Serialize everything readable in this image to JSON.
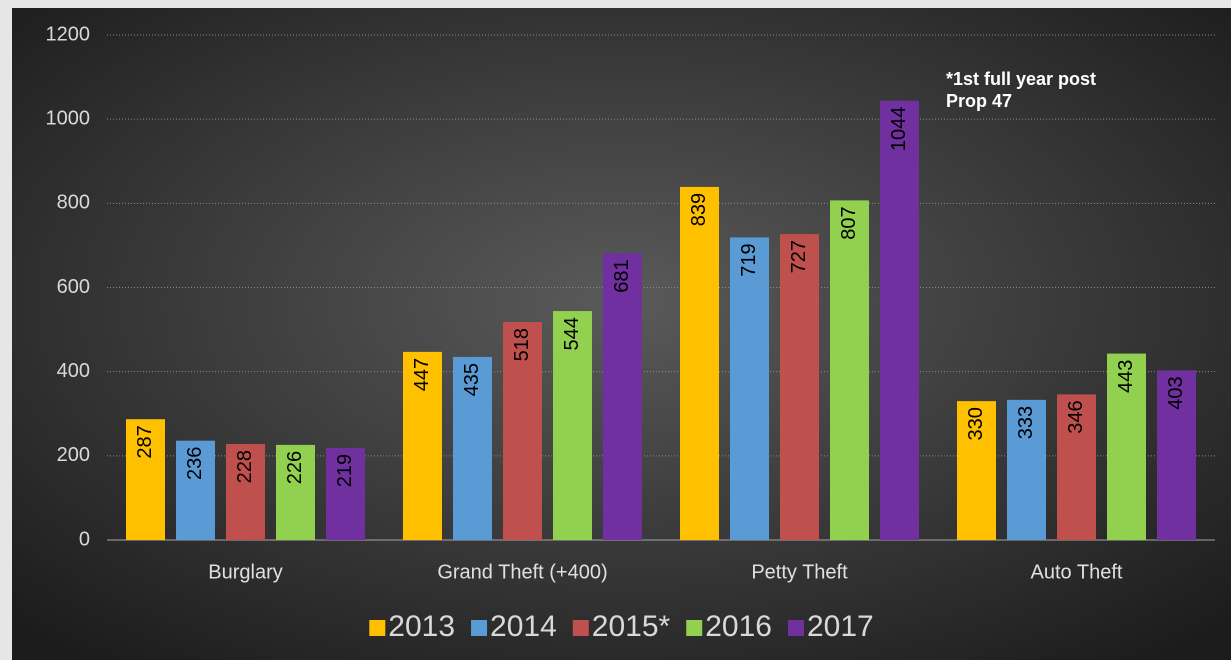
{
  "chart_data": {
    "type": "bar",
    "categories": [
      "Burglary",
      "Grand Theft (+400)",
      "Petty Theft",
      "Auto Theft"
    ],
    "series": [
      {
        "name": "2013",
        "color": "#ffc000",
        "values": [
          287,
          447,
          839,
          330
        ]
      },
      {
        "name": "2014",
        "color": "#5b9bd5",
        "values": [
          236,
          435,
          719,
          333
        ]
      },
      {
        "name": "2015*",
        "color": "#c0504d",
        "values": [
          228,
          518,
          727,
          346
        ]
      },
      {
        "name": "2016",
        "color": "#92d050",
        "values": [
          226,
          544,
          807,
          443
        ]
      },
      {
        "name": "2017",
        "color": "#7030a0",
        "values": [
          219,
          681,
          1044,
          403
        ]
      }
    ],
    "annotation": "*1st full year post Prop 47",
    "ylim": [
      0,
      1200
    ],
    "yticks": [
      0,
      200,
      400,
      600,
      800,
      1000,
      1200
    ],
    "grid": true,
    "legend": "bottom"
  }
}
